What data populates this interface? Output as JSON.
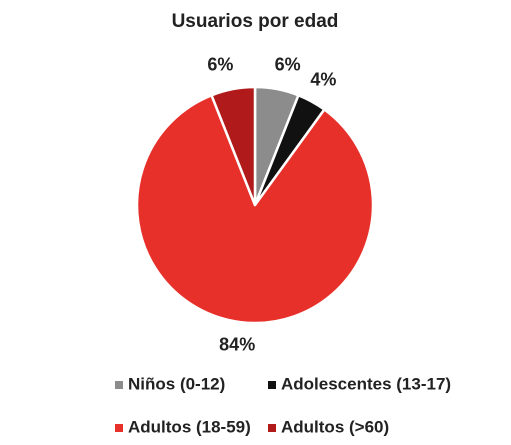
{
  "chart_data": {
    "type": "pie",
    "title": "Usuarios por edad",
    "categories": [
      "Niños (0-12)",
      "Adolescentes (13-17)",
      "Adultos (18-59)",
      "Adultos (>60)"
    ],
    "values": [
      6,
      4,
      84,
      6
    ],
    "value_labels": [
      "6%",
      "4%",
      "84%",
      "6%"
    ],
    "colors": [
      "#8c8c8c",
      "#111111",
      "#e8302a",
      "#b01a1a"
    ],
    "legend": "bottom"
  }
}
